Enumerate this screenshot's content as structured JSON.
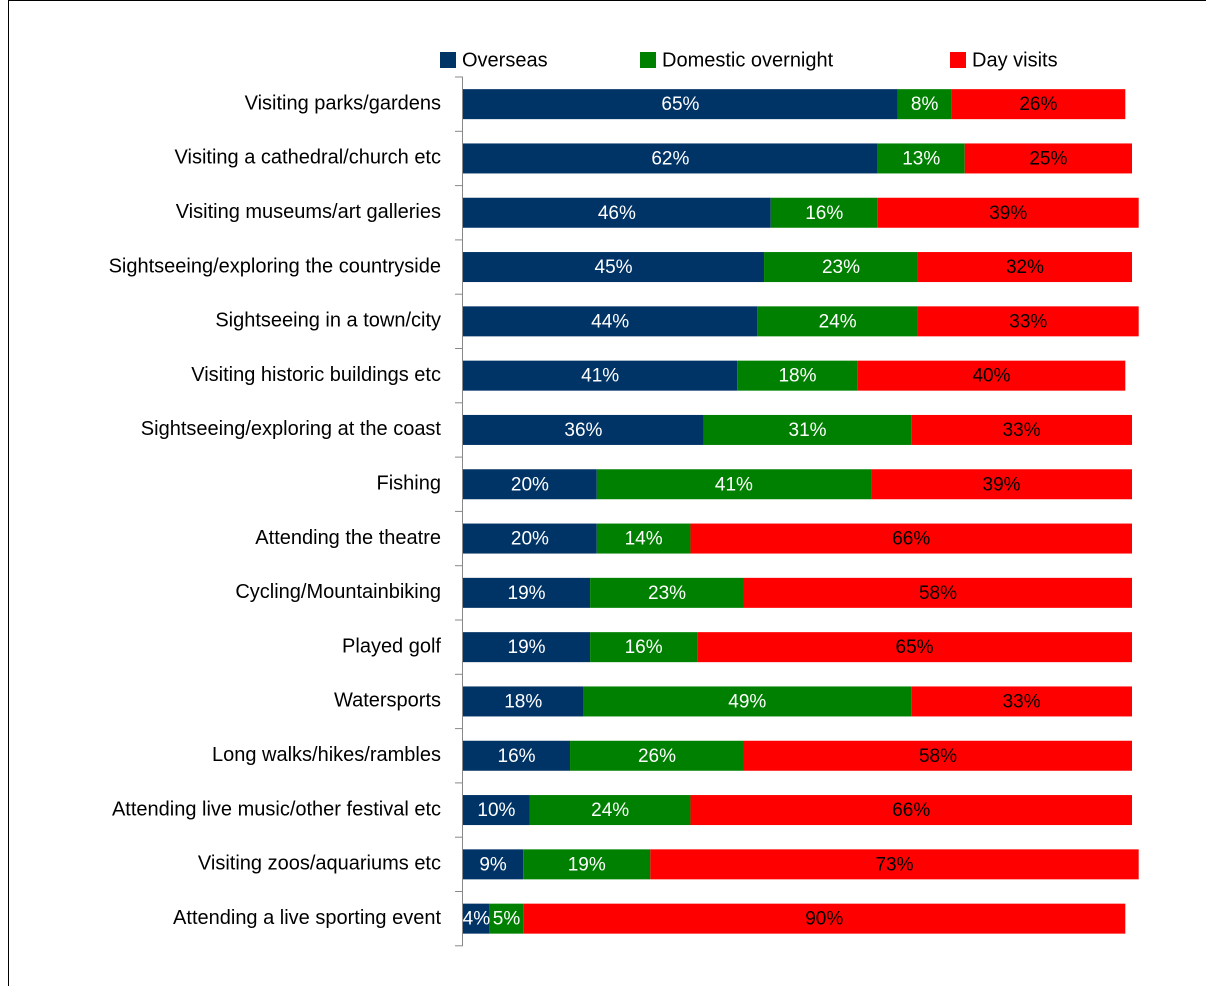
{
  "chart_data": {
    "type": "stacked-bar-horizontal",
    "categories": [
      "Visiting parks/gardens",
      "Visiting a cathedral/church etc",
      "Visiting museums/art galleries",
      "Sightseeing/exploring the countryside",
      "Sightseeing in a town/city",
      "Visiting historic buildings etc",
      "Sightseeing/exploring at the coast",
      "Fishing",
      "Attending the theatre",
      "Cycling/Mountainbiking",
      "Played golf",
      "Watersports",
      "Long walks/hikes/rambles",
      "Attending live music/other festival etc",
      "Visiting zoos/aquariums etc",
      "Attending a live sporting event"
    ],
    "series": [
      {
        "name": "Overseas",
        "color": "#003366",
        "label_color": "#ffffff",
        "values": [
          65,
          62,
          46,
          45,
          44,
          41,
          36,
          20,
          20,
          19,
          19,
          18,
          16,
          10,
          9,
          4
        ],
        "value_labels": [
          "65%",
          "62%",
          "46%",
          "45%",
          "44%",
          "41%",
          "36%",
          "20%",
          "20%",
          "19%",
          "19%",
          "18%",
          "16%",
          "10%",
          "9%",
          "4%"
        ]
      },
      {
        "name": "Domestic overnight",
        "color": "#008000",
        "label_color": "#ffffff",
        "values": [
          8,
          13,
          16,
          23,
          24,
          18,
          31,
          41,
          14,
          23,
          16,
          49,
          26,
          24,
          19,
          5
        ],
        "value_labels": [
          "8%",
          "13%",
          "16%",
          "23%",
          "24%",
          "18%",
          "31%",
          "41%",
          "14%",
          "23%",
          "16%",
          "49%",
          "26%",
          "24%",
          "19%",
          "5%"
        ]
      },
      {
        "name": "Day visits",
        "color": "#ff0000",
        "label_color": "#000000",
        "values": [
          26,
          25,
          39,
          32,
          33,
          40,
          33,
          39,
          66,
          58,
          65,
          33,
          58,
          66,
          73,
          90
        ],
        "value_labels": [
          "26%",
          "25%",
          "39%",
          "32%",
          "33%",
          "40%",
          "33%",
          "39%",
          "66%",
          "58%",
          "65%",
          "33%",
          "58%",
          "66%",
          "73%",
          "90%"
        ]
      }
    ],
    "xlim": [
      0,
      100
    ],
    "legend": "top"
  }
}
